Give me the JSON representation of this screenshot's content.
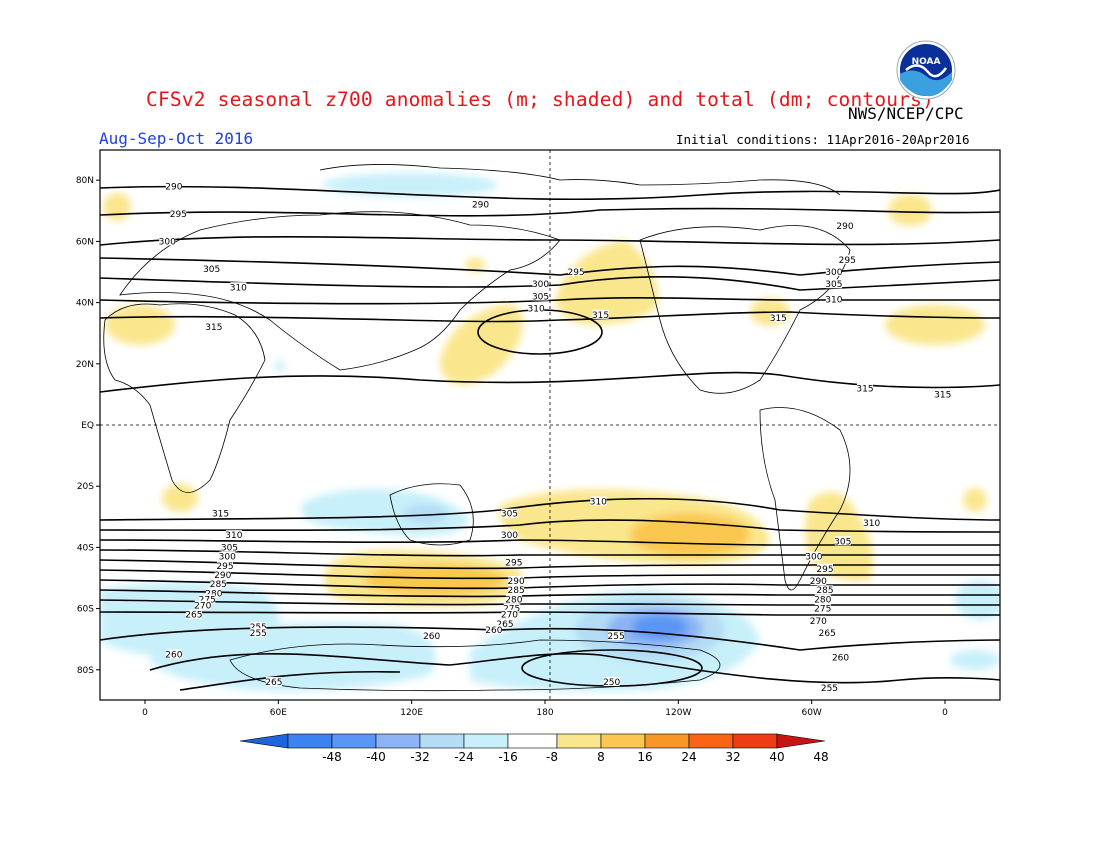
{
  "header": {
    "title": "CFSv2 seasonal z700 anomalies (m; shaded) and total (dm; contours)",
    "agency": "NWS/NCEP/CPC",
    "season": "Aug-Sep-Oct 2016",
    "initial_conditions": "Initial conditions: 11Apr2016-20Apr2016",
    "logo_text": "NOAA"
  },
  "map": {
    "lat_labels": [
      "80N",
      "60N",
      "40N",
      "20N",
      "EQ",
      "20S",
      "40S",
      "60S",
      "80S"
    ],
    "lon_labels": [
      "0",
      "60E",
      "120E",
      "180",
      "120W",
      "60W",
      "0"
    ],
    "contour_labels": [
      {
        "text": "290",
        "lon": 13,
        "lat": 78
      },
      {
        "text": "295",
        "lon": 15,
        "lat": 69
      },
      {
        "text": "300",
        "lon": 10,
        "lat": 60
      },
      {
        "text": "305",
        "lon": 30,
        "lat": 51
      },
      {
        "text": "310",
        "lon": 42,
        "lat": 45
      },
      {
        "text": "315",
        "lon": 31,
        "lat": 32
      },
      {
        "text": "315",
        "lon": -1,
        "lat": 10
      },
      {
        "text": "290",
        "lon": 151,
        "lat": 72
      },
      {
        "text": "295",
        "lon": 194,
        "lat": 50
      },
      {
        "text": "300",
        "lon": 178,
        "lat": 46
      },
      {
        "text": "305",
        "lon": 178,
        "lat": 42
      },
      {
        "text": "310",
        "lon": 176,
        "lat": 38
      },
      {
        "text": "315",
        "lon": 205,
        "lat": 36
      },
      {
        "text": "315",
        "lon": 285,
        "lat": 35
      },
      {
        "text": "290",
        "lon": 315,
        "lat": 65
      },
      {
        "text": "295",
        "lon": 316,
        "lat": 54
      },
      {
        "text": "300",
        "lon": 310,
        "lat": 50
      },
      {
        "text": "305",
        "lon": 310,
        "lat": 46
      },
      {
        "text": "310",
        "lon": 310,
        "lat": 41
      },
      {
        "text": "315",
        "lon": 324,
        "lat": 12
      },
      {
        "text": "315",
        "lon": 34,
        "lat": -29
      },
      {
        "text": "310",
        "lon": 40,
        "lat": -36
      },
      {
        "text": "305",
        "lon": 38,
        "lat": -40
      },
      {
        "text": "300",
        "lon": 37,
        "lat": -43
      },
      {
        "text": "295",
        "lon": 36,
        "lat": -46
      },
      {
        "text": "290",
        "lon": 35,
        "lat": -49
      },
      {
        "text": "285",
        "lon": 33,
        "lat": -52
      },
      {
        "text": "280",
        "lon": 31,
        "lat": -55
      },
      {
        "text": "275",
        "lon": 28,
        "lat": -57
      },
      {
        "text": "270",
        "lon": 26,
        "lat": -59
      },
      {
        "text": "265",
        "lon": 22,
        "lat": -62
      },
      {
        "text": "255",
        "lon": 51,
        "lat": -66
      },
      {
        "text": "255",
        "lon": 51,
        "lat": -68
      },
      {
        "text": "260",
        "lon": 13,
        "lat": -75
      },
      {
        "text": "265",
        "lon": 58,
        "lat": -84
      },
      {
        "text": "260",
        "lon": 129,
        "lat": -69
      },
      {
        "text": "305",
        "lon": 164,
        "lat": -29
      },
      {
        "text": "300",
        "lon": 164,
        "lat": -36
      },
      {
        "text": "295",
        "lon": 166,
        "lat": -45
      },
      {
        "text": "290",
        "lon": 167,
        "lat": -51
      },
      {
        "text": "285",
        "lon": 167,
        "lat": -54
      },
      {
        "text": "280",
        "lon": 166,
        "lat": -57
      },
      {
        "text": "275",
        "lon": 165,
        "lat": -60
      },
      {
        "text": "270",
        "lon": 164,
        "lat": -62
      },
      {
        "text": "265",
        "lon": 162,
        "lat": -65
      },
      {
        "text": "260",
        "lon": 157,
        "lat": -67
      },
      {
        "text": "310",
        "lon": 204,
        "lat": -25
      },
      {
        "text": "255",
        "lon": 212,
        "lat": -69
      },
      {
        "text": "250",
        "lon": 210,
        "lat": -84
      },
      {
        "text": "305",
        "lon": 314,
        "lat": -38
      },
      {
        "text": "310",
        "lon": 327,
        "lat": -32
      },
      {
        "text": "300",
        "lon": 301,
        "lat": -43
      },
      {
        "text": "295",
        "lon": 306,
        "lat": -47
      },
      {
        "text": "290",
        "lon": 303,
        "lat": -51
      },
      {
        "text": "285",
        "lon": 306,
        "lat": -54
      },
      {
        "text": "280",
        "lon": 305,
        "lat": -57
      },
      {
        "text": "275",
        "lon": 305,
        "lat": -60
      },
      {
        "text": "270",
        "lon": 303,
        "lat": -64
      },
      {
        "text": "265",
        "lon": 307,
        "lat": -68
      },
      {
        "text": "260",
        "lon": 313,
        "lat": -76
      },
      {
        "text": "255",
        "lon": 308,
        "lat": -86
      }
    ]
  },
  "colorbar": {
    "labels": [
      "-48",
      "-40",
      "-32",
      "-24",
      "-16",
      "-8",
      "8",
      "16",
      "24",
      "32",
      "40",
      "48"
    ],
    "colors": [
      "#1e64dc",
      "#3c82f0",
      "#5a96f5",
      "#8cb4f5",
      "#b4dcf5",
      "#c8f0fa",
      "#ffffff",
      "#fae68c",
      "#fac850",
      "#fa9628",
      "#fa6414",
      "#f03c14",
      "#c81414"
    ]
  }
}
